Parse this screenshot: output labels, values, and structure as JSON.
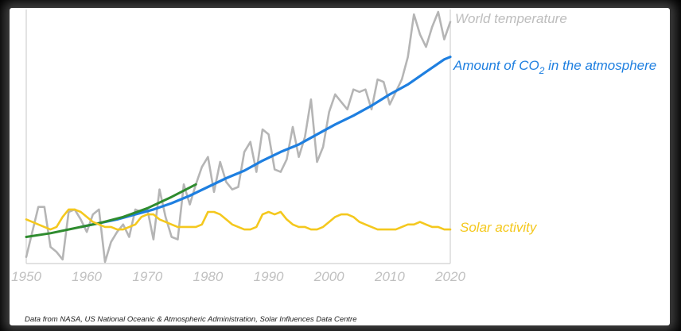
{
  "chart_data": {
    "type": "line",
    "title": "",
    "xlabel": "",
    "ylabel": "",
    "xlim": [
      1950,
      2020
    ],
    "ylim": [
      0,
      100
    ],
    "x_ticks": [
      "1950",
      "1960",
      "1970",
      "1980",
      "1990",
      "2000",
      "2010",
      "2020"
    ],
    "grid": false,
    "legend": "direct labels at right end of lines",
    "series": [
      {
        "name": "World temperature",
        "color": "#b5b5b5",
        "x": [
          1950,
          1951,
          1952,
          1953,
          1954,
          1955,
          1956,
          1957,
          1958,
          1959,
          1960,
          1961,
          1962,
          1963,
          1964,
          1965,
          1966,
          1967,
          1968,
          1969,
          1970,
          1971,
          1972,
          1973,
          1974,
          1975,
          1976,
          1977,
          1978,
          1979,
          1980,
          1981,
          1982,
          1983,
          1984,
          1985,
          1986,
          1987,
          1988,
          1989,
          1990,
          1991,
          1992,
          1993,
          1994,
          1995,
          1996,
          1997,
          1998,
          1999,
          2000,
          2001,
          2002,
          2003,
          2004,
          2005,
          2006,
          2007,
          2008,
          2009,
          2010,
          2011,
          2012,
          2013,
          2014,
          2015,
          2016,
          2017,
          2018,
          2019,
          2020
        ],
        "values": [
          2,
          12,
          22,
          22,
          6,
          4,
          1,
          20,
          21,
          17,
          12,
          19,
          21,
          0,
          8,
          12,
          15,
          10,
          21,
          20,
          21,
          9,
          29,
          18,
          10,
          9,
          31,
          23,
          31,
          38,
          42,
          28,
          40,
          32,
          29,
          30,
          44,
          48,
          36,
          53,
          51,
          37,
          36,
          41,
          54,
          42,
          50,
          65,
          40,
          46,
          60,
          67,
          64,
          61,
          69,
          68,
          69,
          61,
          73,
          72,
          63,
          68,
          73,
          82,
          99,
          91,
          86,
          94,
          100,
          89,
          96
        ]
      },
      {
        "name": "Amount of CO₂ in the atmosphere",
        "color": "#1e7fe0",
        "x": [
          1959,
          1962,
          1965,
          1968,
          1971,
          1974,
          1977,
          1980,
          1983,
          1986,
          1989,
          1992,
          1995,
          1998,
          2001,
          2004,
          2007,
          2010,
          2013,
          2016,
          2019,
          2020
        ],
        "values": [
          14,
          15.5,
          17,
          19,
          21,
          23.5,
          26.5,
          30,
          33.5,
          36.5,
          40.5,
          44,
          47,
          51,
          55,
          58.5,
          62.5,
          67,
          71,
          76,
          81,
          82
        ]
      },
      {
        "name": "",
        "color": "#2e8b2e",
        "x": [
          1950,
          1954,
          1958,
          1962,
          1966,
          1970,
          1974,
          1978
        ],
        "values": [
          10,
          11.5,
          13.5,
          15.5,
          18,
          21.5,
          26,
          31
        ]
      },
      {
        "name": "Solar activity",
        "color": "#f4c81e",
        "x": [
          1950,
          1951,
          1952,
          1953,
          1954,
          1955,
          1956,
          1957,
          1958,
          1959,
          1960,
          1961,
          1962,
          1963,
          1964,
          1965,
          1966,
          1967,
          1968,
          1969,
          1970,
          1971,
          1972,
          1973,
          1974,
          1975,
          1976,
          1977,
          1978,
          1979,
          1980,
          1981,
          1982,
          1983,
          1984,
          1985,
          1986,
          1987,
          1988,
          1989,
          1990,
          1991,
          1992,
          1993,
          1994,
          1995,
          1996,
          1997,
          1998,
          1999,
          2000,
          2001,
          2002,
          2003,
          2004,
          2005,
          2006,
          2007,
          2008,
          2009,
          2010,
          2011,
          2012,
          2013,
          2014,
          2015,
          2016,
          2017,
          2018,
          2019,
          2020
        ],
        "values": [
          17,
          16,
          15,
          14,
          13,
          14,
          18,
          21,
          21,
          20,
          18,
          16,
          15,
          14,
          14,
          13,
          13,
          14,
          15,
          18,
          19,
          19,
          17,
          16,
          15,
          14,
          14,
          14,
          14,
          15,
          20,
          20,
          19,
          17,
          15,
          14,
          13,
          13,
          14,
          19,
          20,
          19,
          20,
          17,
          15,
          14,
          14,
          13,
          13,
          14,
          16,
          18,
          19,
          19,
          18,
          16,
          15,
          14,
          13,
          13,
          13,
          13,
          14,
          15,
          15,
          16,
          15,
          14,
          14,
          13,
          13
        ]
      }
    ]
  },
  "labels": {
    "temperature": "World temperature",
    "co2_prefix": "Amount of CO",
    "co2_subscript": "2",
    "co2_suffix": " in the atmosphere",
    "solar": "Solar activity"
  },
  "source_note": "Data from NASA, US National Oceanic & Atmospheric Administration, Solar Influences Data Centre"
}
